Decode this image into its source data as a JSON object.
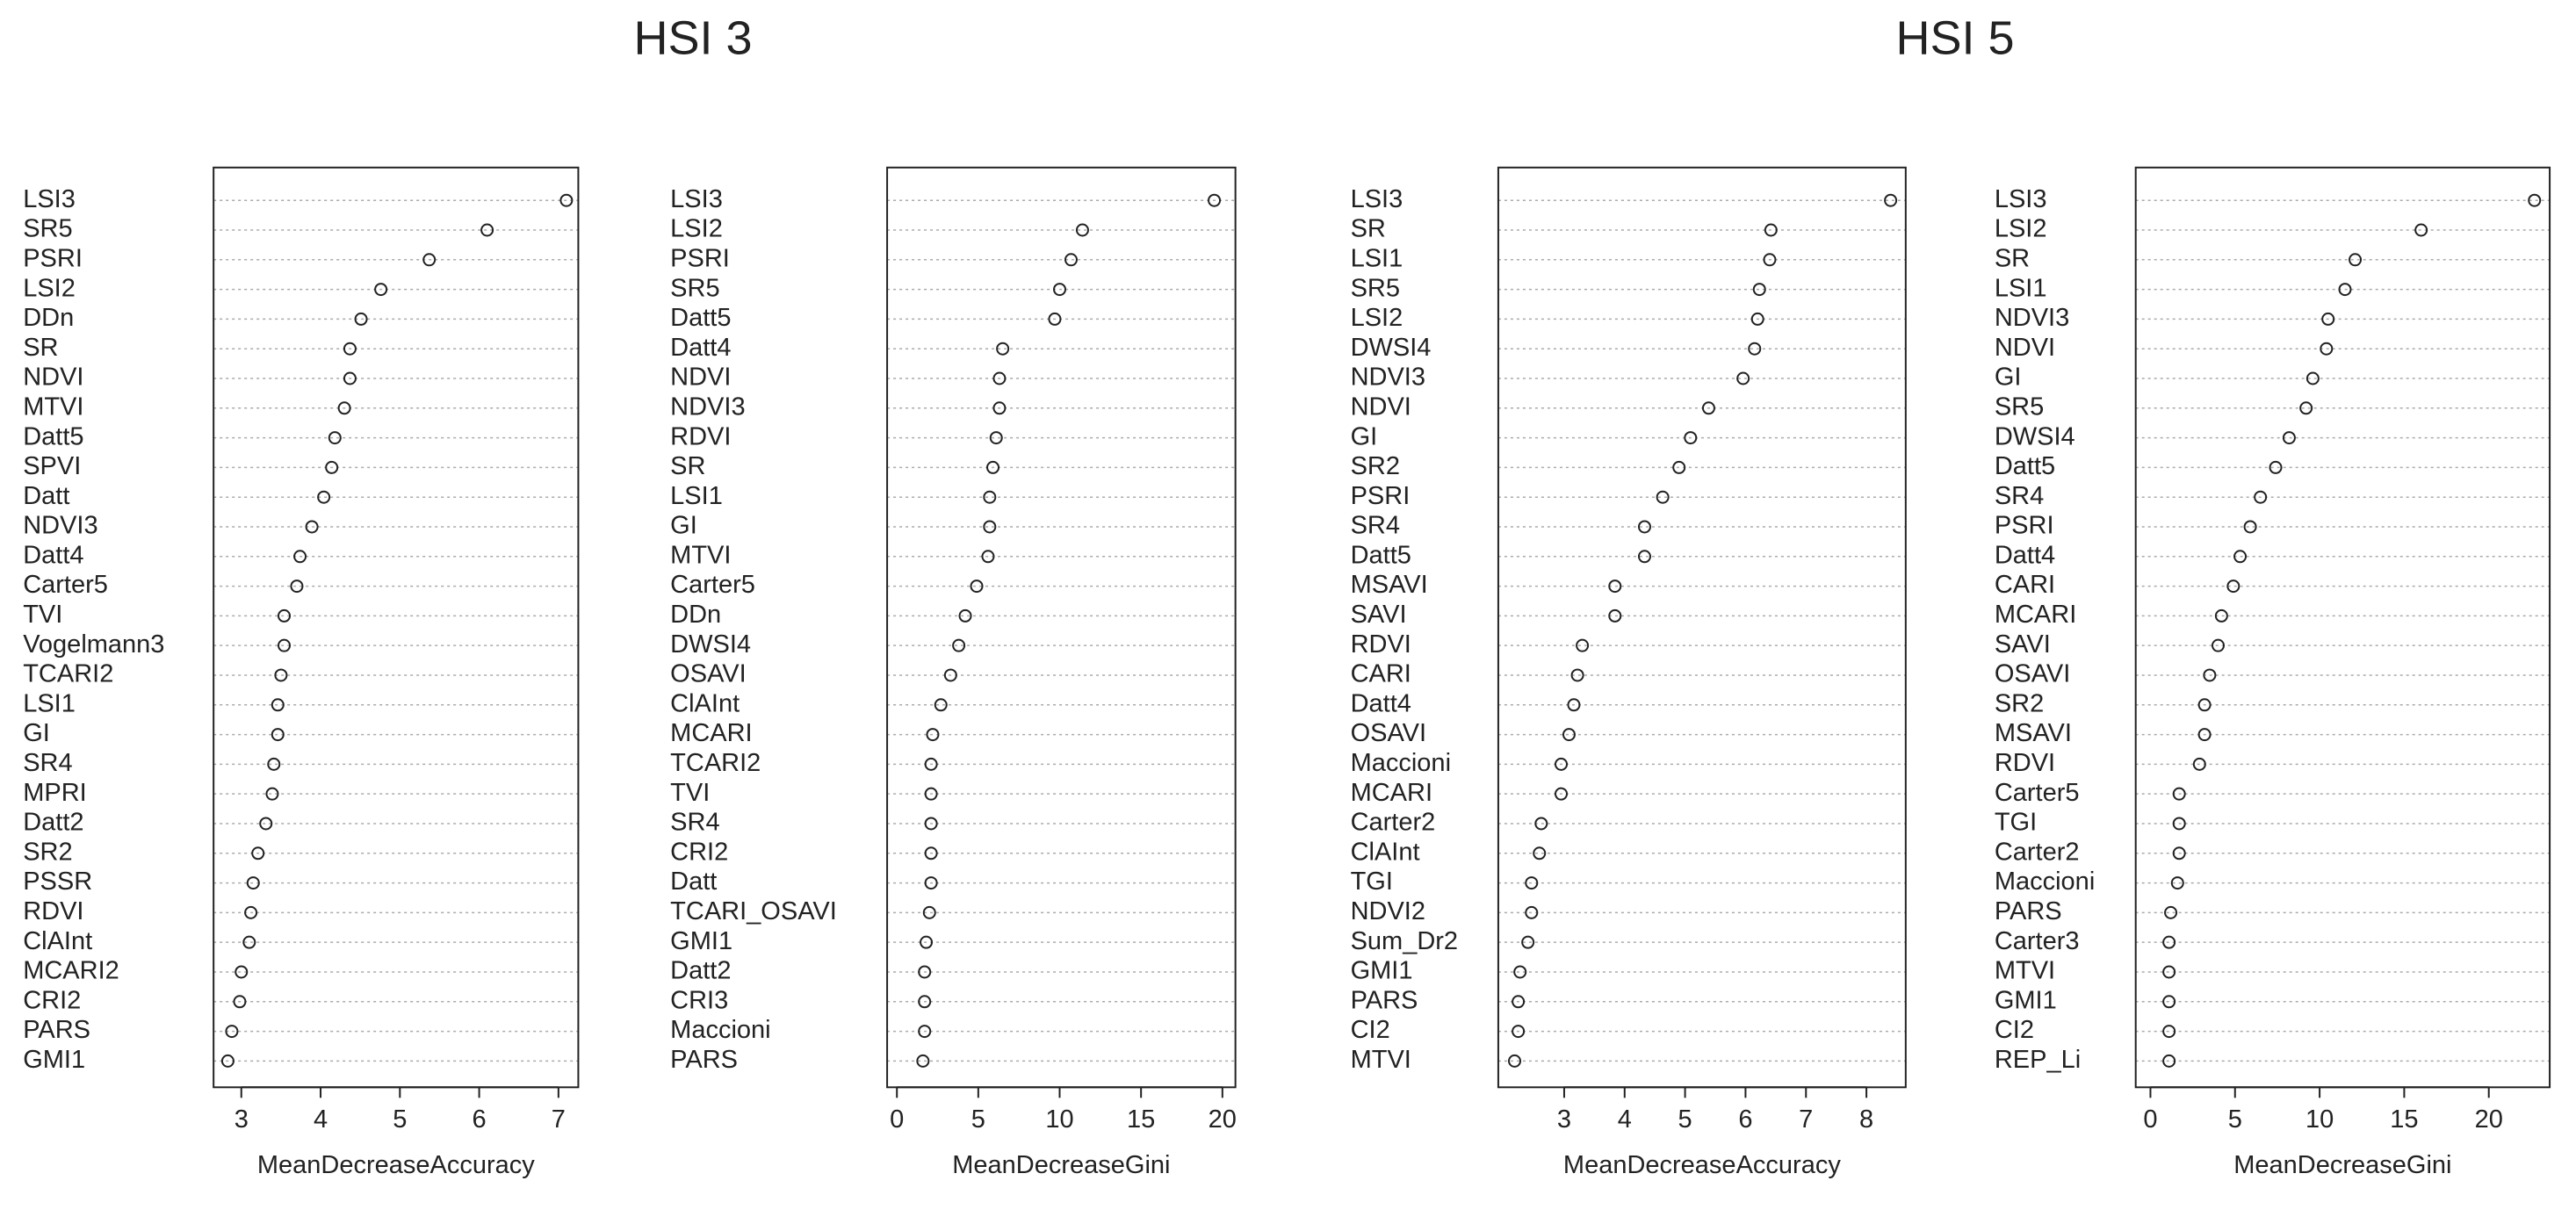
{
  "headings": [
    "HSI 3",
    "HSI 5"
  ],
  "chart_data": [
    {
      "type": "dot",
      "xlabel": "MeanDecreaseAccuracy",
      "categories": [
        "LSI3",
        "SR5",
        "PSRI",
        "LSI2",
        "DDn",
        "SR",
        "NDVI",
        "MTVI",
        "Datt5",
        "SPVI",
        "Datt",
        "NDVI3",
        "Datt4",
        "Carter5",
        "TVI",
        "Vogelmann3",
        "TCARI2",
        "LSI1",
        "GI",
        "SR4",
        "MPRI",
        "Datt2",
        "SR2",
        "PSSR",
        "RDVI",
        "ClAInt",
        "MCARI2",
        "CRI2",
        "PARS",
        "GMI1"
      ],
      "values": [
        7.1,
        6.1,
        5.37,
        4.76,
        4.51,
        4.37,
        4.37,
        4.3,
        4.18,
        4.14,
        4.04,
        3.89,
        3.74,
        3.7,
        3.54,
        3.54,
        3.5,
        3.46,
        3.46,
        3.41,
        3.39,
        3.31,
        3.21,
        3.15,
        3.12,
        3.1,
        3.0,
        2.98,
        2.88,
        2.83
      ],
      "xlim": [
        2.65,
        7.25
      ],
      "xticks": [
        3,
        4,
        5,
        6,
        7
      ]
    },
    {
      "type": "dot",
      "xlabel": "MeanDecreaseGini",
      "categories": [
        "LSI3",
        "LSI2",
        "PSRI",
        "SR5",
        "Datt5",
        "Datt4",
        "NDVI",
        "NDVI3",
        "RDVI",
        "SR",
        "LSI1",
        "GI",
        "MTVI",
        "Carter5",
        "DDn",
        "DWSI4",
        "OSAVI",
        "ClAInt",
        "MCARI",
        "TCARI2",
        "TVI",
        "SR4",
        "CRI2",
        "Datt",
        "TCARI_OSAVI",
        "GMI1",
        "Datt2",
        "CRI3",
        "Maccioni",
        "PARS"
      ],
      "values": [
        19.5,
        11.4,
        10.7,
        10.0,
        9.7,
        6.5,
        6.3,
        6.3,
        6.1,
        5.9,
        5.7,
        5.7,
        5.6,
        4.9,
        4.2,
        3.8,
        3.3,
        2.7,
        2.2,
        2.1,
        2.1,
        2.1,
        2.1,
        2.1,
        2.0,
        1.8,
        1.7,
        1.7,
        1.7,
        1.6
      ],
      "xlim": [
        -0.6,
        20.8
      ],
      "xticks": [
        0,
        5,
        10,
        15,
        20
      ]
    },
    {
      "type": "dot",
      "xlabel": "MeanDecreaseAccuracy",
      "categories": [
        "LSI3",
        "SR",
        "LSI1",
        "SR5",
        "LSI2",
        "DWSI4",
        "NDVI3",
        "NDVI",
        "GI",
        "SR2",
        "PSRI",
        "SR4",
        "Datt5",
        "MSAVI",
        "SAVI",
        "RDVI",
        "CARI",
        "Datt4",
        "OSAVI",
        "Maccioni",
        "MCARI",
        "Carter2",
        "ClAInt",
        "TGI",
        "NDVI2",
        "Sum_Dr2",
        "GMI1",
        "PARS",
        "CI2",
        "MTVI"
      ],
      "values": [
        8.4,
        6.42,
        6.4,
        6.23,
        6.2,
        6.15,
        5.96,
        5.39,
        5.09,
        4.9,
        4.63,
        4.33,
        4.33,
        3.84,
        3.84,
        3.3,
        3.22,
        3.16,
        3.08,
        2.95,
        2.95,
        2.62,
        2.59,
        2.46,
        2.46,
        2.4,
        2.27,
        2.24,
        2.24,
        2.18
      ],
      "xlim": [
        1.91,
        8.65
      ],
      "xticks": [
        3,
        4,
        5,
        6,
        7,
        8
      ]
    },
    {
      "type": "dot",
      "xlabel": "MeanDecreaseGini",
      "categories": [
        "LSI3",
        "LSI2",
        "SR",
        "LSI1",
        "NDVI3",
        "NDVI",
        "GI",
        "SR5",
        "DWSI4",
        "Datt5",
        "SR4",
        "PSRI",
        "Datt4",
        "CARI",
        "MCARI",
        "SAVI",
        "OSAVI",
        "SR2",
        "MSAVI",
        "RDVI",
        "Carter5",
        "TGI",
        "Carter2",
        "Maccioni",
        "PARS",
        "Carter3",
        "MTVI",
        "GMI1",
        "CI2",
        "REP_Li"
      ],
      "values": [
        22.7,
        16.0,
        12.1,
        11.5,
        10.5,
        10.4,
        9.6,
        9.2,
        8.2,
        7.4,
        6.5,
        5.9,
        5.3,
        4.9,
        4.2,
        4.0,
        3.5,
        3.2,
        3.2,
        2.9,
        1.7,
        1.7,
        1.7,
        1.6,
        1.2,
        1.1,
        1.1,
        1.1,
        1.1,
        1.1
      ],
      "xlim": [
        -0.87,
        23.6
      ],
      "xticks": [
        0,
        5,
        10,
        15,
        20
      ]
    }
  ]
}
